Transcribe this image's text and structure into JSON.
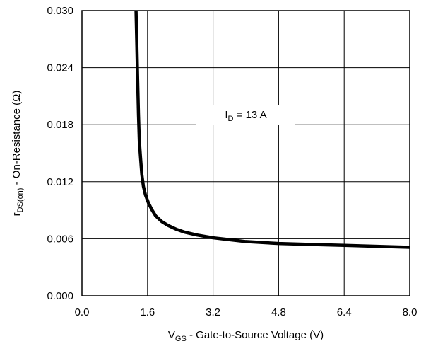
{
  "chart_data": {
    "type": "line",
    "title": "",
    "xlabel": {
      "symbol": "V",
      "subscript": "GS",
      "text": " - Gate-to-Source Voltage (V)"
    },
    "ylabel": {
      "symbol": "r",
      "subscript": "DS(on)",
      "text": "  -  On-Resistance (Ω)"
    },
    "xlim": [
      0.0,
      8.0
    ],
    "ylim": [
      0.0,
      0.03
    ],
    "x_ticks": [
      "0.0",
      "1.6",
      "3.2",
      "4.8",
      "6.4",
      "8.0"
    ],
    "y_ticks": [
      "0.000",
      "0.006",
      "0.012",
      "0.018",
      "0.024",
      "0.030"
    ],
    "grid": true,
    "annotation": {
      "symbol": "I",
      "subscript": "D",
      "text": " =  13 A",
      "x": 4.0,
      "y": 0.0187
    },
    "series": [
      {
        "x": [
          1.32,
          1.34,
          1.36,
          1.38,
          1.4,
          1.43,
          1.46,
          1.5,
          1.55,
          1.62,
          1.7,
          1.8,
          1.95,
          2.1,
          2.3,
          2.5,
          2.8,
          3.2,
          3.6,
          4.0,
          4.8,
          5.6,
          6.4,
          7.2,
          8.0
        ],
        "y": [
          0.03,
          0.0263,
          0.0225,
          0.019,
          0.0163,
          0.0145,
          0.0128,
          0.0115,
          0.0106,
          0.0098,
          0.0091,
          0.0084,
          0.0078,
          0.0074,
          0.007,
          0.0067,
          0.0064,
          0.0061,
          0.0059,
          0.0057,
          0.0055,
          0.0054,
          0.0053,
          0.0052,
          0.0051
        ]
      }
    ]
  }
}
